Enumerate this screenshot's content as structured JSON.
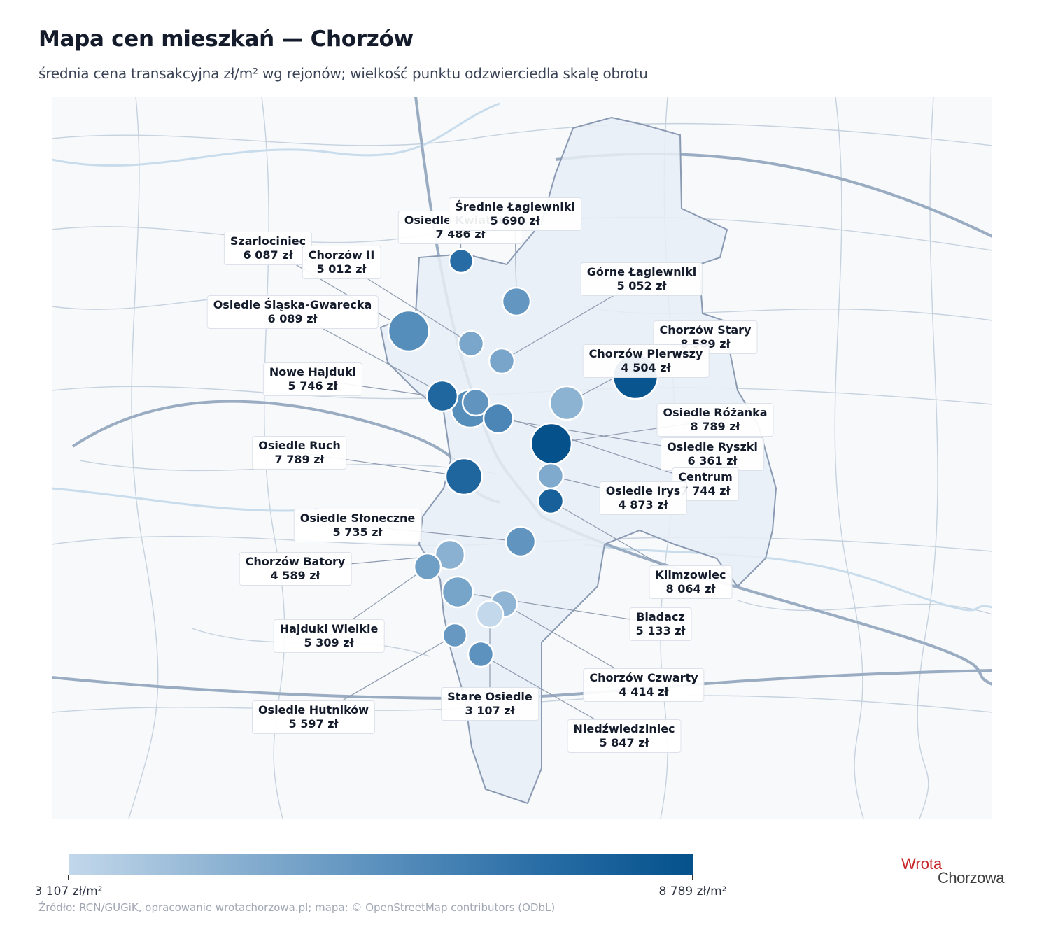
{
  "header": {
    "title": "Mapa cen mieszkań — Chorzów",
    "subtitle": "średnia cena transakcyjna zł/m² wg rejonów; wielkość punktu odzwierciedla skalę obrotu"
  },
  "colors": {
    "low": "#c3d8eb",
    "high": "#04518c",
    "boundary_fill": "#e8eef6",
    "boundary_stroke": "#8a9ab3",
    "roads": "#b9c6d6",
    "water": "#c8dcec"
  },
  "districts": [
    {
      "name": "Osiedle Kwiatowe",
      "price": "7 486 zł",
      "value": 7486
    },
    {
      "name": "Średnie Łagiewniki",
      "price": "5 690 zł",
      "value": 5690
    },
    {
      "name": "Szarlociniec",
      "price": "6 087 zł",
      "value": 6087
    },
    {
      "name": "Chorzów II",
      "price": "5 012 zł",
      "value": 5012
    },
    {
      "name": "Górne Łagiewniki",
      "price": "5 052 zł",
      "value": 5052
    },
    {
      "name": "Osiedle Śląska-Gwarecka",
      "price": "6 089 zł",
      "value": 6089
    },
    {
      "name": "Chorzów Stary",
      "price": "8 589 zł",
      "value": 8589
    },
    {
      "name": "Chorzów Pierwszy",
      "price": "4 504 zł",
      "value": 4504
    },
    {
      "name": "Nowe Hajduki",
      "price": "5 746 zł",
      "value": 5746
    },
    {
      "name": "Osiedle Różanka",
      "price": "8 789 zł",
      "value": 8789
    },
    {
      "name": "Osiedle Ruch",
      "price": "7 789 zł",
      "value": 7789
    },
    {
      "name": "Osiedle Ryszki",
      "price": "6 361 zł",
      "value": 6361
    },
    {
      "name": "Centrum",
      "price": "7 744 zł",
      "value": 7744
    },
    {
      "name": "Osiedle Irys",
      "price": "4 873 zł",
      "value": 4873
    },
    {
      "name": "Osiedle Słoneczne",
      "price": "5 735 zł",
      "value": 5735
    },
    {
      "name": "Chorzów Batory",
      "price": "4 589 zł",
      "value": 4589
    },
    {
      "name": "Klimzowiec",
      "price": "8 064 zł",
      "value": 8064
    },
    {
      "name": "Biadacz",
      "price": "5 133 zł",
      "value": 5133
    },
    {
      "name": "Hajduki Wielkie",
      "price": "5 309 zł",
      "value": 5309
    },
    {
      "name": "Chorzów Czwarty",
      "price": "4 414 zł",
      "value": 4414
    },
    {
      "name": "Stare Osiedle",
      "price": "3 107 zł",
      "value": 3107
    },
    {
      "name": "Osiedle Hutników",
      "price": "5 597 zł",
      "value": 5597
    },
    {
      "name": "Niedźwiedziniec",
      "price": "5 847 zł",
      "value": 5847
    }
  ],
  "colorbar": {
    "min_label": "3 107 zł/m²",
    "max_label": "8 789 zł/m²",
    "min": 3107,
    "max": 8789
  },
  "source": "Źródło: RCN/GUGiK, opracowanie wrotachorzowa.pl; mapa: © OpenStreetMap contributors (ODbL)",
  "logo": {
    "line1": "Wrota",
    "line2": "Chorzowa"
  }
}
